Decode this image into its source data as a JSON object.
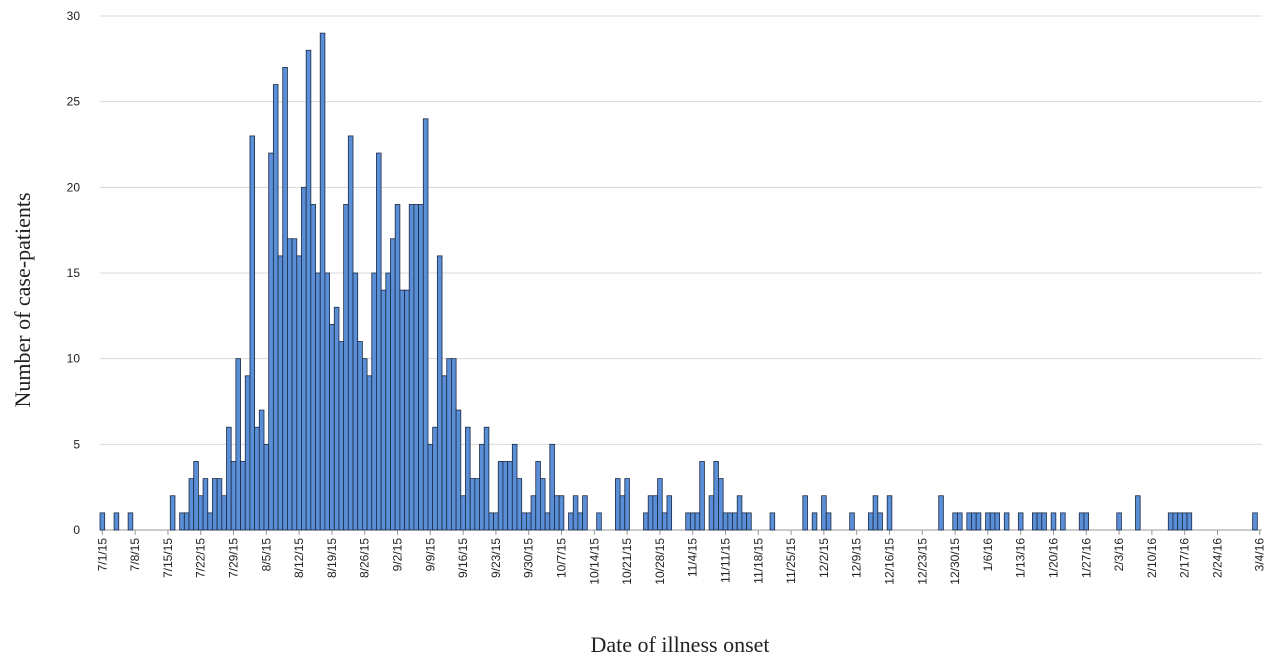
{
  "chart_data": {
    "type": "bar",
    "x_label": "Date of illness onset",
    "y_label": "Number of case-patients",
    "color": "#5a8fd8",
    "ylim": [
      0,
      30
    ],
    "yticks": [
      0,
      5,
      10,
      15,
      20,
      25,
      30
    ],
    "grid": true,
    "categories": [
      "7/1/15",
      null,
      null,
      null,
      null,
      null,
      null,
      "7/8/15",
      null,
      null,
      null,
      null,
      null,
      null,
      "7/15/15",
      null,
      null,
      null,
      null,
      null,
      null,
      "7/22/15",
      null,
      null,
      null,
      null,
      null,
      null,
      "7/29/15",
      null,
      null,
      null,
      null,
      null,
      null,
      "8/5/15",
      null,
      null,
      null,
      null,
      null,
      null,
      "8/12/15",
      null,
      null,
      null,
      null,
      null,
      null,
      "8/19/15",
      null,
      null,
      null,
      null,
      null,
      null,
      "8/26/15",
      null,
      null,
      null,
      null,
      null,
      null,
      "9/2/15",
      null,
      null,
      null,
      null,
      null,
      null,
      "9/9/15",
      null,
      null,
      null,
      null,
      null,
      null,
      "9/16/15",
      null,
      null,
      null,
      null,
      null,
      null,
      "9/23/15",
      null,
      null,
      null,
      null,
      null,
      null,
      "9/30/15",
      null,
      null,
      null,
      null,
      null,
      null,
      "10/7/15",
      null,
      null,
      null,
      null,
      null,
      null,
      "10/14/15",
      null,
      null,
      null,
      null,
      null,
      null,
      "10/21/15",
      null,
      null,
      null,
      null,
      null,
      null,
      "10/28/15",
      null,
      null,
      null,
      null,
      null,
      null,
      "11/4/15",
      null,
      null,
      null,
      null,
      null,
      null,
      "11/11/15",
      null,
      null,
      null,
      null,
      null,
      null,
      "11/18/15",
      null,
      null,
      null,
      null,
      null,
      null,
      "11/25/15",
      null,
      null,
      null,
      null,
      null,
      null,
      "12/2/15",
      null,
      null,
      null,
      null,
      null,
      null,
      "12/9/15",
      null,
      null,
      null,
      null,
      null,
      null,
      "12/16/15",
      null,
      null,
      null,
      null,
      null,
      null,
      "12/23/15",
      null,
      null,
      null,
      null,
      null,
      null,
      "12/30/15",
      null,
      null,
      null,
      null,
      null,
      null,
      "1/6/16",
      null,
      null,
      null,
      null,
      null,
      null,
      "1/13/16",
      null,
      null,
      null,
      null,
      null,
      null,
      "1/20/16",
      null,
      null,
      null,
      null,
      null,
      null,
      "1/27/16",
      null,
      null,
      null,
      null,
      null,
      null,
      "2/3/16",
      null,
      null,
      null,
      null,
      null,
      null,
      "2/10/16",
      null,
      null,
      null,
      null,
      null,
      null,
      "2/17/16",
      null,
      null,
      null,
      null,
      null,
      null,
      "2/24/16",
      null,
      null,
      null,
      null,
      null,
      null,
      null,
      null,
      "3/4/16"
    ],
    "values": [
      1,
      0,
      0,
      1,
      0,
      0,
      1,
      0,
      0,
      0,
      0,
      0,
      0,
      0,
      0,
      2,
      0,
      1,
      1,
      3,
      4,
      2,
      3,
      1,
      3,
      3,
      2,
      6,
      4,
      10,
      4,
      9,
      23,
      6,
      7,
      5,
      22,
      26,
      16,
      27,
      17,
      17,
      16,
      20,
      28,
      19,
      15,
      29,
      15,
      12,
      13,
      11,
      19,
      23,
      15,
      11,
      10,
      9,
      15,
      22,
      14,
      15,
      17,
      19,
      14,
      14,
      19,
      19,
      19,
      24,
      5,
      6,
      16,
      9,
      10,
      10,
      7,
      2,
      6,
      3,
      3,
      5,
      6,
      1,
      1,
      4,
      4,
      4,
      5,
      3,
      1,
      1,
      2,
      4,
      3,
      1,
      5,
      2,
      2,
      0,
      1,
      2,
      1,
      2,
      0,
      0,
      1,
      0,
      0,
      0,
      3,
      2,
      3,
      0,
      0,
      0,
      1,
      2,
      2,
      3,
      1,
      2,
      0,
      0,
      0,
      1,
      1,
      1,
      4,
      0,
      2,
      4,
      3,
      1,
      1,
      1,
      2,
      1,
      1,
      0,
      0,
      0,
      0,
      1,
      0,
      0,
      0,
      0,
      0,
      0,
      2,
      0,
      1,
      0,
      2,
      1,
      0,
      0,
      0,
      0,
      1,
      0,
      0,
      0,
      1,
      2,
      1,
      0,
      2,
      0,
      0,
      0,
      0,
      0,
      0,
      0,
      0,
      0,
      0,
      2,
      0,
      0,
      1,
      1,
      0,
      1,
      1,
      1,
      0,
      1,
      1,
      1,
      0,
      1,
      0,
      0,
      1,
      0,
      0,
      1,
      1,
      1,
      0,
      1,
      0,
      1,
      0,
      0,
      0,
      1,
      1,
      0,
      0,
      0,
      0,
      0,
      0,
      1,
      0,
      0,
      0,
      2,
      0,
      0,
      0,
      0,
      0,
      0,
      1,
      1,
      1,
      1,
      1,
      0,
      0,
      0,
      0,
      0,
      0,
      0,
      0,
      0,
      0,
      0,
      0,
      0,
      1,
      0
    ]
  }
}
